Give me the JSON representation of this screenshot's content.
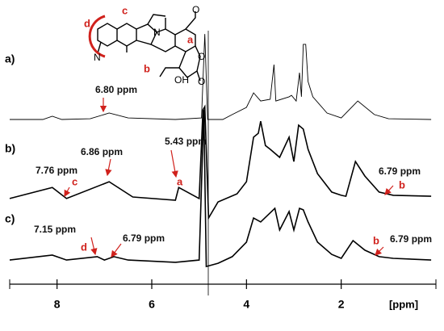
{
  "chart_data": {
    "type": "line",
    "xlim": [
      9,
      0
    ],
    "ylim": [
      0,
      100
    ],
    "xticks": [
      8,
      6,
      4,
      2
    ],
    "xlabel": "[ppm]",
    "series": [
      {
        "name": "a)",
        "color": "#000000",
        "x": [
          9.0,
          8.3,
          8.1,
          7.9,
          7.3,
          6.9,
          6.5,
          5.5,
          4.95,
          4.88,
          4.82,
          4.5,
          4.3,
          4.0,
          3.85,
          3.7,
          3.5,
          3.42,
          3.38,
          3.1,
          3.05,
          2.95,
          2.88,
          2.84,
          2.8,
          2.75,
          2.7,
          2.6,
          2.3,
          2.0,
          1.65,
          1.3,
          1.0,
          0.1
        ],
        "values": [
          64.6,
          64.6,
          65.9,
          64.6,
          64.9,
          67.2,
          65.2,
          64.6,
          65.2,
          99.3,
          64.6,
          64.6,
          66.6,
          69.5,
          75.4,
          72.1,
          72.8,
          86.9,
          72.1,
          73.8,
          74.4,
          72.1,
          83.6,
          73.8,
          95.1,
          95.1,
          80.0,
          73.8,
          67.2,
          65.2,
          72.1,
          66.6,
          64.9,
          64.6
        ]
      },
      {
        "name": "b)",
        "color": "#000000",
        "x": [
          9.0,
          8.1,
          7.8,
          6.9,
          6.4,
          5.5,
          5.43,
          5.0,
          4.92,
          4.88,
          4.8,
          4.6,
          4.2,
          4.0,
          3.85,
          3.75,
          3.7,
          3.6,
          3.5,
          3.3,
          3.1,
          3.0,
          2.9,
          2.8,
          2.7,
          2.5,
          2.2,
          2.0,
          1.9,
          1.7,
          1.5,
          1.2,
          0.9,
          0.1
        ],
        "values": [
          32.5,
          37.0,
          32.5,
          39.3,
          33.1,
          31.8,
          37.0,
          32.5,
          68.5,
          69.8,
          24.6,
          31.1,
          34.4,
          39.3,
          57.4,
          59.0,
          63.9,
          54.0,
          52.5,
          49.2,
          57.4,
          47.5,
          62.3,
          60.7,
          52.5,
          42.6,
          35.1,
          33.8,
          33.4,
          47.5,
          41.6,
          35.1,
          33.8,
          33.4
        ]
      },
      {
        "name": "c)",
        "color": "#000000",
        "x": [
          9.0,
          8.1,
          7.8,
          7.15,
          7.0,
          6.8,
          6.5,
          5.5,
          5.0,
          4.9,
          4.85,
          4.6,
          4.3,
          4.0,
          3.85,
          3.7,
          3.4,
          3.3,
          3.1,
          3.0,
          2.88,
          2.8,
          2.7,
          2.5,
          2.2,
          2.0,
          1.75,
          1.5,
          1.2,
          0.9,
          0.1
        ],
        "values": [
          7.5,
          9.5,
          7.5,
          8.9,
          7.5,
          8.9,
          7.5,
          6.6,
          7.5,
          68.5,
          4.9,
          6.2,
          8.9,
          14.8,
          24.6,
          23.0,
          28.5,
          19.7,
          27.2,
          19.7,
          28.5,
          27.9,
          23.0,
          14.8,
          9.8,
          8.2,
          15.4,
          11.5,
          8.9,
          8.2,
          7.5
        ]
      }
    ],
    "annotations": [
      {
        "text": "6.80 ppm"
      },
      {
        "text": "7.76 ppm",
        "letter": "c"
      },
      {
        "text": "6.86 ppm"
      },
      {
        "text": "5.43 ppm",
        "letter": "a"
      },
      {
        "text": "6.79 ppm",
        "letter": "b"
      },
      {
        "text": "7.15 ppm",
        "letter": "d"
      },
      {
        "text": "6.79 ppm"
      },
      {
        "text": "6.79 ppm",
        "letter": "b"
      }
    ]
  },
  "structure": {
    "labels": [
      "c",
      "d",
      "a",
      "b"
    ],
    "atoms": [
      "O",
      "N",
      "N",
      "O",
      "O",
      "OH"
    ]
  }
}
